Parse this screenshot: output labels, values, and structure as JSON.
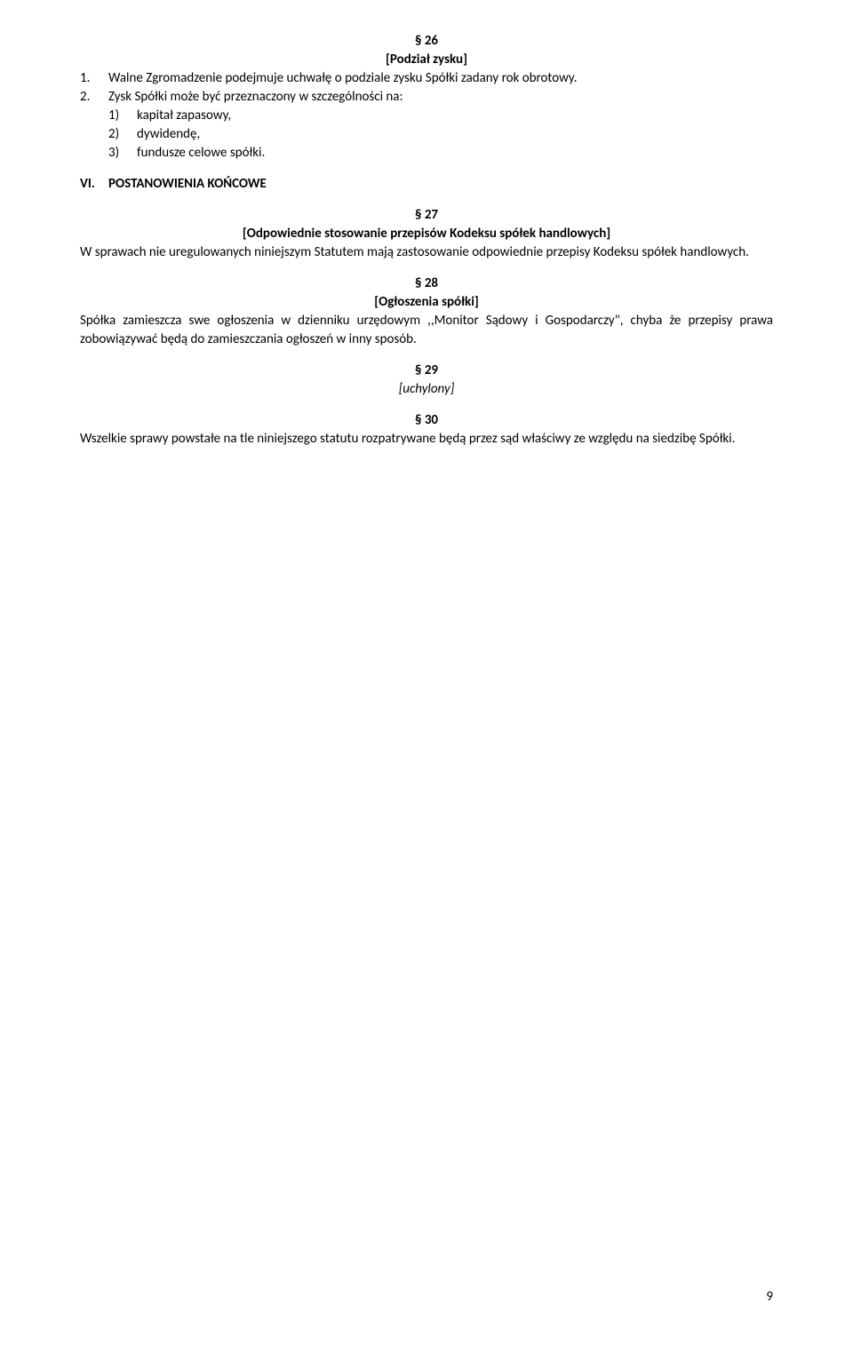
{
  "s26": {
    "num": "§ 26",
    "title": "[Podział zysku]",
    "item1_num": "1.",
    "item1_text": "Walne Zgromadzenie podejmuje uchwałę o podziale zysku Spółki zadany rok obrotowy.",
    "item2_num": "2.",
    "item2_text": "Zysk Spółki może być przeznaczony w szczególności na:",
    "sub1_num": "1)",
    "sub1_text": "kapitał zapasowy,",
    "sub2_num": "2)",
    "sub2_text": "dywidendę,",
    "sub3_num": "3)",
    "sub3_text": "fundusze celowe spółki."
  },
  "roman": {
    "num": "VI.",
    "text": "POSTANOWIENIA KOŃCOWE"
  },
  "s27": {
    "num": "§ 27",
    "title": "[Odpowiednie stosowanie przepisów Kodeksu spółek handlowych]",
    "body": "W sprawach nie uregulowanych niniejszym Statutem mają zastosowanie odpowiednie przepisy Kodeksu spółek handlowych."
  },
  "s28": {
    "num": "§ 28",
    "title": "[Ogłoszenia spółki]",
    "body": "Spółka zamieszcza swe ogłoszenia w dzienniku urzędowym ,,Monitor Sądowy i Gospodarczy\", chyba że przepisy prawa zobowiązywać będą do zamieszczania ogłoszeń w inny sposób."
  },
  "s29": {
    "num": "§ 29",
    "title": "[uchylony]"
  },
  "s30": {
    "num": "§ 30",
    "body": "Wszelkie sprawy powstałe na tle niniejszego statutu rozpatrywane będą przez sąd właściwy ze względu na siedzibę Spółki."
  },
  "page_number": "9"
}
